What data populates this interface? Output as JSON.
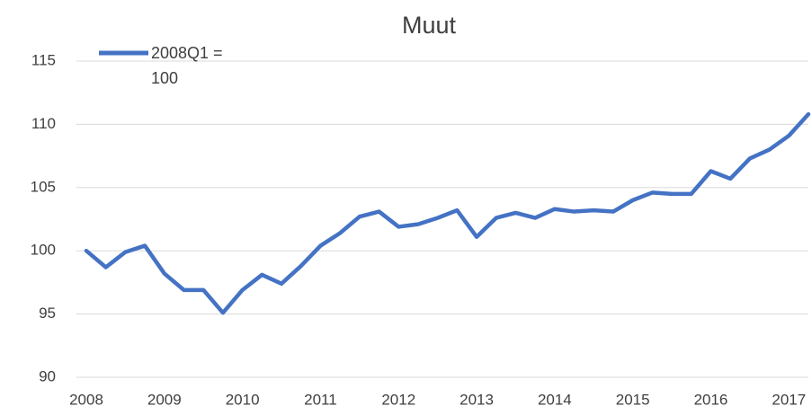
{
  "chart_data": {
    "type": "line",
    "title": "Muut",
    "categories": [
      "2008",
      null,
      null,
      null,
      "2009",
      null,
      null,
      null,
      "2010",
      null,
      null,
      null,
      "2011",
      null,
      null,
      null,
      "2012",
      null,
      null,
      null,
      "2013",
      null,
      null,
      null,
      "2014",
      null,
      null,
      null,
      "2015",
      null,
      null,
      null,
      "2016",
      null,
      null,
      null,
      "2017",
      null
    ],
    "series": [
      {
        "name": "2008Q1 = 100",
        "color": "#4472c4",
        "values": [
          100,
          98.7,
          99.9,
          100.4,
          98.2,
          96.9,
          96.9,
          95.1,
          96.9,
          98.1,
          97.4,
          98.8,
          100.4,
          101.4,
          102.7,
          103.1,
          101.9,
          102.1,
          102.6,
          103.2,
          101.1,
          102.6,
          103,
          102.6,
          103.3,
          103.1,
          103.2,
          103.1,
          104,
          104.6,
          104.5,
          104.5,
          106.3,
          105.7,
          107.3,
          108,
          109.1,
          110.8
        ]
      }
    ],
    "ylim": [
      90,
      115
    ],
    "yticks": [
      90,
      95,
      100,
      105,
      110,
      115
    ],
    "grid": true,
    "legend": "top-left"
  }
}
